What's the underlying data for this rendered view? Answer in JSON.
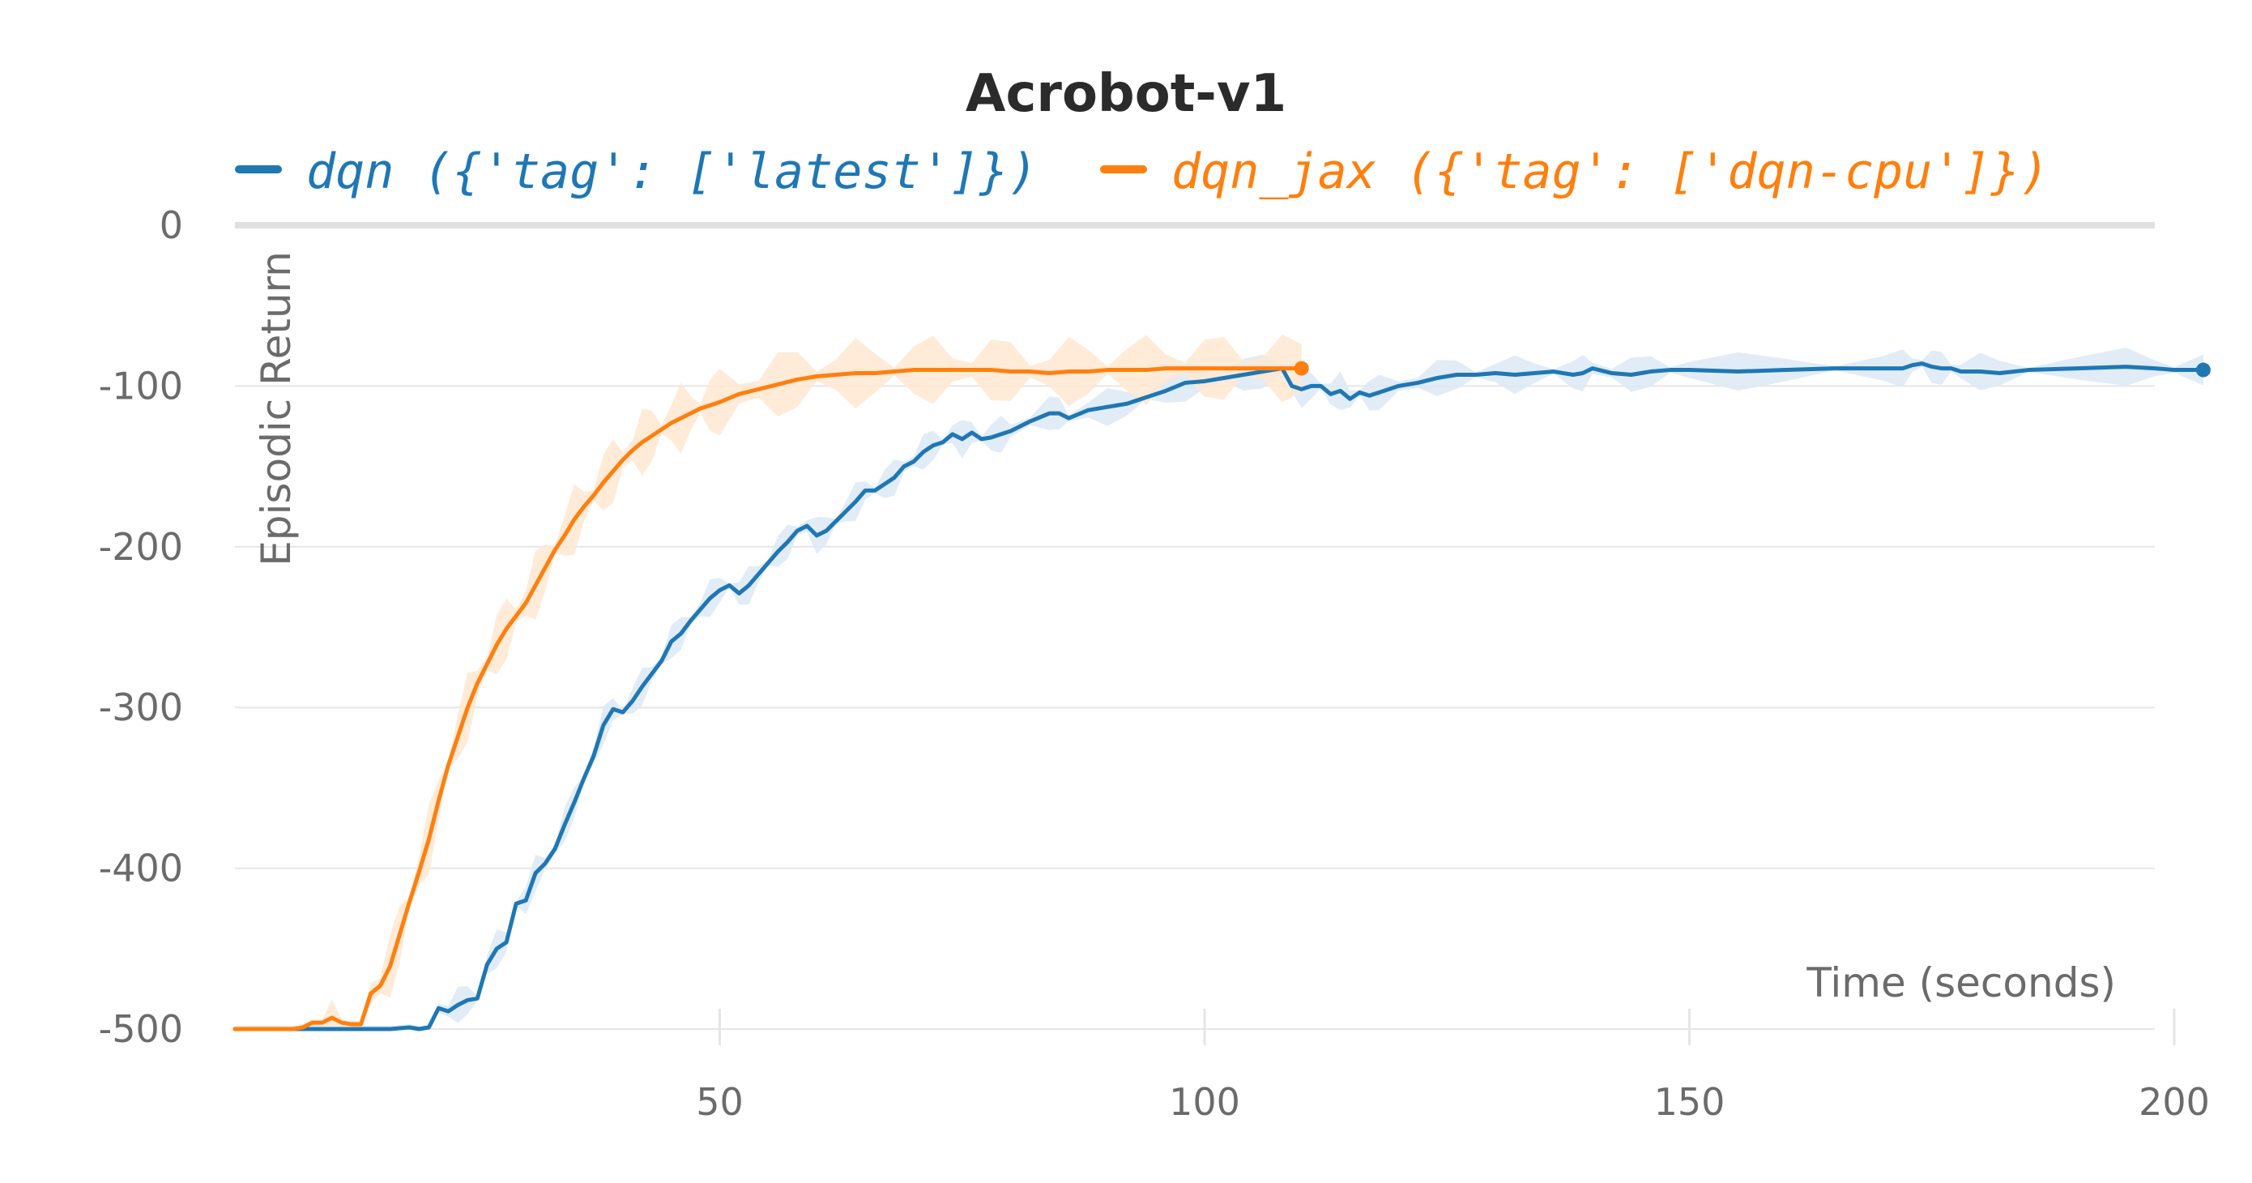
{
  "chart_data": {
    "type": "line",
    "title": "Acrobot-v1",
    "xlabel": "Time (seconds)",
    "ylabel": "Episodic Return",
    "xlim": [
      0,
      204
    ],
    "ylim": [
      -500,
      0
    ],
    "xticks": [
      50,
      100,
      150,
      200
    ],
    "yticks": [
      0,
      -100,
      -200,
      -300,
      -400,
      -500
    ],
    "grid": true,
    "legend_position": "top",
    "series": [
      {
        "name": "dqn ({'tag': ['latest']})",
        "color": "#1f77b4",
        "band_color": "#dce9f5",
        "x": [
          0,
          12,
          16,
          18,
          19,
          20,
          21,
          22,
          23,
          24,
          25,
          26,
          27,
          28,
          29,
          30,
          31,
          32,
          33,
          34,
          35,
          36,
          37,
          38,
          39,
          40,
          41,
          42,
          43,
          44,
          45,
          46,
          47,
          48,
          49,
          50,
          51,
          52,
          53,
          54,
          55,
          56,
          57,
          58,
          59,
          60,
          61,
          62,
          63,
          64,
          65,
          66,
          67,
          68,
          69,
          70,
          71,
          72,
          73,
          74,
          75,
          76,
          77,
          78,
          79,
          80,
          82,
          84,
          85,
          86,
          88,
          90,
          92,
          94,
          96,
          98,
          100,
          102,
          104,
          106,
          108,
          109,
          110,
          111,
          112,
          113,
          114,
          115,
          116,
          117,
          118,
          120,
          122,
          124,
          126,
          128,
          130,
          132,
          134,
          136,
          138,
          139,
          140,
          142,
          144,
          146,
          148,
          150,
          155,
          160,
          165,
          170,
          172,
          173,
          174,
          175,
          176,
          177,
          178,
          180,
          182,
          185,
          190,
          195,
          198,
          200,
          203
        ],
        "y": [
          -500,
          -500,
          -500,
          -499,
          -500,
          -499,
          -487,
          -489,
          -485,
          -482,
          -481,
          -460,
          -450,
          -446,
          -422,
          -420,
          -403,
          -397,
          -388,
          -373,
          -359,
          -344,
          -330,
          -311,
          -301,
          -303,
          -296,
          -287,
          -279,
          -271,
          -259,
          -254,
          -246,
          -239,
          -232,
          -227,
          -224,
          -229,
          -224,
          -217,
          -210,
          -203,
          -197,
          -190,
          -187,
          -193,
          -190,
          -184,
          -178,
          -172,
          -165,
          -165,
          -161,
          -157,
          -150,
          -147,
          -141,
          -137,
          -135,
          -130,
          -133,
          -129,
          -133,
          -132,
          -130,
          -128,
          -122,
          -117,
          -117,
          -120,
          -115,
          -113,
          -111,
          -107,
          -103,
          -98,
          -97,
          -95,
          -93,
          -91,
          -89,
          -100,
          -102,
          -100,
          -100,
          -105,
          -103,
          -108,
          -104,
          -106,
          -104,
          -100,
          -98,
          -95,
          -93,
          -93,
          -92,
          -93,
          -92,
          -91,
          -93,
          -92,
          -89,
          -92,
          -93,
          -91,
          -90,
          -90,
          -91,
          -90,
          -89,
          -89,
          -89,
          -87,
          -86,
          -88,
          -89,
          -89,
          -91,
          -91,
          -92,
          -90,
          -89,
          -88,
          -89,
          -90,
          -90
        ]
      },
      {
        "name": "dqn_jax ({'tag': ['dqn-cpu']})",
        "color": "#ff7f0e",
        "band_color": "#ffe8d1",
        "x": [
          0,
          6,
          7,
          8,
          9,
          10,
          11,
          12,
          13,
          14,
          15,
          16,
          17,
          18,
          19,
          20,
          21,
          22,
          23,
          24,
          25,
          26,
          27,
          28,
          29,
          30,
          31,
          32,
          33,
          34,
          35,
          36,
          37,
          38,
          39,
          40,
          41,
          42,
          43,
          44,
          45,
          46,
          47,
          48,
          49,
          50,
          52,
          54,
          56,
          58,
          60,
          62,
          64,
          66,
          68,
          70,
          72,
          74,
          76,
          78,
          80,
          82,
          84,
          86,
          88,
          90,
          92,
          94,
          96,
          98,
          100,
          102,
          104,
          106,
          108,
          110
        ],
        "y": [
          -500,
          -500,
          -499,
          -496,
          -496,
          -493,
          -496,
          -497,
          -497,
          -478,
          -473,
          -461,
          -441,
          -421,
          -402,
          -382,
          -358,
          -336,
          -318,
          -300,
          -285,
          -273,
          -261,
          -251,
          -243,
          -235,
          -224,
          -213,
          -202,
          -193,
          -183,
          -175,
          -168,
          -160,
          -153,
          -146,
          -140,
          -135,
          -131,
          -127,
          -123,
          -120,
          -117,
          -114,
          -112,
          -110,
          -105,
          -102,
          -99,
          -96,
          -94,
          -93,
          -92,
          -92,
          -91,
          -90,
          -90,
          -90,
          -90,
          -90,
          -91,
          -91,
          -92,
          -91,
          -91,
          -90,
          -90,
          -90,
          -89,
          -89,
          -89,
          -89,
          -89,
          -89,
          -89,
          -89
        ]
      }
    ]
  }
}
